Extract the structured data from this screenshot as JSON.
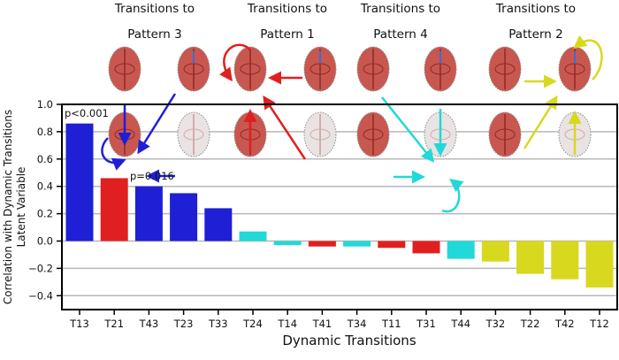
{
  "chart_data": {
    "type": "bar",
    "xlabel": "Dynamic Transitions",
    "ylabel": [
      "Correlation with Dynamic Transitions",
      "Latent Variable"
    ],
    "ylim": [
      -0.45,
      1.0
    ],
    "yticks": [
      "1.0",
      "0.8",
      "0.6",
      "0.4",
      "0.2",
      "0.0",
      "−0.2",
      "−0.4"
    ],
    "ytick_values": [
      1.0,
      0.8,
      0.6,
      0.4,
      0.2,
      0.0,
      -0.2,
      -0.4
    ],
    "grid": "horizontal",
    "categories": [
      "T13",
      "T21",
      "T43",
      "T23",
      "T33",
      "T24",
      "T14",
      "T41",
      "T34",
      "T11",
      "T31",
      "T44",
      "T32",
      "T22",
      "T42",
      "T12"
    ],
    "values": [
      0.86,
      0.46,
      0.4,
      0.35,
      0.24,
      0.07,
      -0.03,
      -0.04,
      -0.04,
      -0.05,
      -0.09,
      -0.13,
      -0.15,
      -0.24,
      -0.28,
      -0.34
    ],
    "bar_groups": [
      "p3",
      "p1",
      "p3",
      "p3",
      "p3",
      "p4",
      "p4",
      "p1",
      "p4",
      "p1",
      "p1",
      "p4",
      "p2",
      "p2",
      "p2",
      "p2"
    ],
    "annotations": [
      {
        "text": "p<0.001",
        "category": "T13"
      },
      {
        "text": "p=0.016",
        "category": "T43"
      }
    ]
  },
  "colors": {
    "p3": "#1f1fd6",
    "p1": "#e02020",
    "p4": "#22d8d8",
    "p2": "#d8d81f"
  },
  "groups": [
    {
      "line1": "Transitions to",
      "line2": "Pattern 3"
    },
    {
      "line1": "Transitions to",
      "line2": "Pattern 1"
    },
    {
      "line1": "Transitions to",
      "line2": "Pattern 4"
    },
    {
      "line1": "Transitions to",
      "line2": "Pattern 2"
    }
  ]
}
